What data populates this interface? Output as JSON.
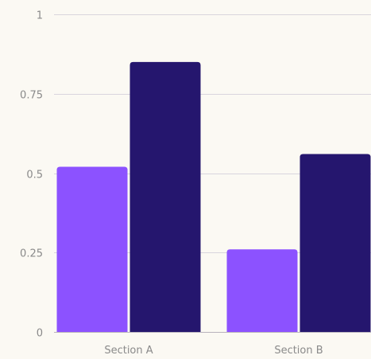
{
  "chart_data": {
    "type": "bar",
    "categories": [
      "Section A",
      "Section B"
    ],
    "series": [
      {
        "values": [
          0.52,
          0.26
        ],
        "color": "#8c52ff"
      },
      {
        "values": [
          0.85,
          0.56
        ],
        "color": "#25166e"
      }
    ],
    "yticks": [
      "0",
      "0.25",
      "0.5",
      "0.75",
      "1"
    ],
    "ylim": [
      0,
      1
    ],
    "grid": true,
    "legend": "none"
  }
}
